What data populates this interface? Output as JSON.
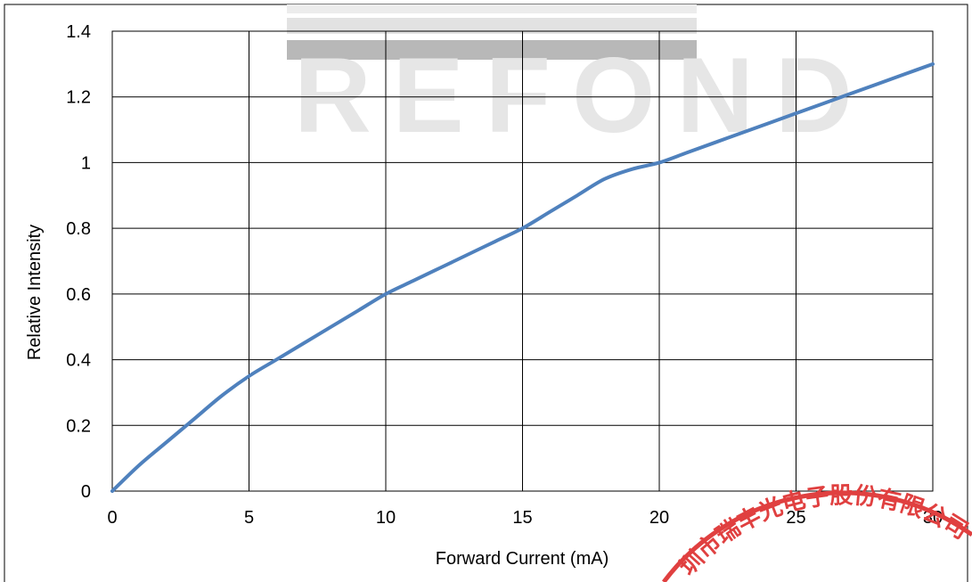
{
  "chart_data": {
    "type": "line",
    "title": "",
    "xlabel": "Forward Current (mA)",
    "ylabel": "Relative Intensity",
    "xlim": [
      0,
      30
    ],
    "ylim": [
      0,
      1.4
    ],
    "x_ticks": [
      "0",
      "5",
      "10",
      "15",
      "20",
      "25",
      "30"
    ],
    "y_ticks": [
      "0",
      "0.2",
      "0.4",
      "0.6",
      "0.8",
      "1",
      "1.2",
      "1.4"
    ],
    "x_tick_values": [
      0,
      5,
      10,
      15,
      20,
      25,
      30
    ],
    "y_tick_values": [
      0,
      0.2,
      0.4,
      0.6,
      0.8,
      1.0,
      1.2,
      1.4
    ],
    "grid": true,
    "legend": "none",
    "series": [
      {
        "color": "#4f81bd",
        "x": [
          0,
          1,
          2,
          3,
          4,
          5,
          6,
          7,
          8,
          9,
          10,
          11,
          12,
          13,
          14,
          15,
          16,
          17,
          18,
          19,
          20,
          21,
          22,
          23,
          24,
          25,
          26,
          27,
          28,
          29,
          30
        ],
        "y": [
          0,
          0.08,
          0.15,
          0.22,
          0.29,
          0.35,
          0.4,
          0.45,
          0.5,
          0.55,
          0.6,
          0.64,
          0.68,
          0.72,
          0.76,
          0.8,
          0.85,
          0.9,
          0.95,
          0.98,
          1.0,
          1.03,
          1.06,
          1.09,
          1.12,
          1.15,
          1.18,
          1.21,
          1.24,
          1.27,
          1.3
        ]
      }
    ]
  },
  "watermark": {
    "logo_text": "REFOND",
    "color": "#e6e6e6"
  },
  "stamp": {
    "text": "圳市瑞丰光电子股份有限公司",
    "color": "#e04040"
  }
}
